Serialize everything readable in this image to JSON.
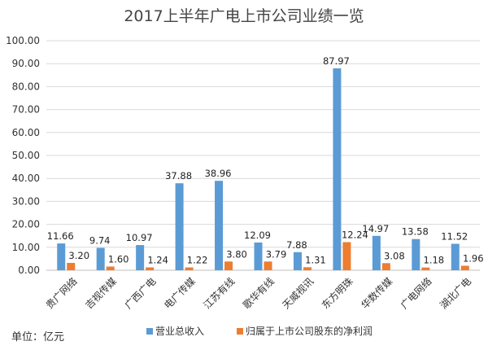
{
  "chart_data": {
    "type": "bar",
    "title": "2017上半年广电上市公司业绩一览",
    "unit_note": "单位：亿元",
    "categories": [
      "贵广网络",
      "吉视传媒",
      "广西广电",
      "电广传媒",
      "江苏有线",
      "歌华有线",
      "天威视讯",
      "东方明珠",
      "华数传媒",
      "广电网络",
      "湖北广电"
    ],
    "series": [
      {
        "name": "营业总收入",
        "color": "#5b9bd5",
        "values": [
          11.66,
          9.74,
          10.97,
          37.88,
          38.96,
          12.09,
          7.88,
          87.97,
          14.97,
          13.58,
          11.52
        ],
        "labels": [
          "11.66",
          "9.74",
          "10.97",
          "37.88",
          "38.96",
          "12.09",
          "7.88",
          "87.97",
          "14.97",
          "13.58",
          "11.52"
        ]
      },
      {
        "name": "归属于上市公司股东的净利润",
        "color": "#ed7d31",
        "values": [
          3.2,
          1.6,
          1.24,
          1.22,
          3.8,
          3.79,
          1.31,
          12.24,
          3.08,
          1.18,
          1.96
        ],
        "labels": [
          "3.20",
          "1.60",
          "1.24",
          "1.22",
          "3.80",
          "3.79",
          "1.31",
          "12.24",
          "3.08",
          "1.18",
          "1.96"
        ]
      }
    ],
    "ylim": [
      0,
      100
    ],
    "yticks": [
      "0.00",
      "10.00",
      "20.00",
      "30.00",
      "40.00",
      "50.00",
      "60.00",
      "70.00",
      "80.00",
      "90.00",
      "100.00"
    ],
    "grid": true,
    "legend_position": "bottom"
  }
}
